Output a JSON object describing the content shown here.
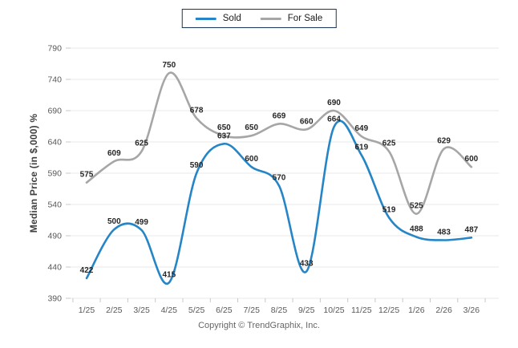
{
  "legend": {
    "items": [
      {
        "label": "Sold",
        "color": "#2585c6"
      },
      {
        "label": "For Sale",
        "color": "#a6a6a6"
      }
    ],
    "border_color": "#17365d"
  },
  "chart_data": {
    "type": "line",
    "title": "",
    "xlabel": "",
    "ylabel": "Median Price (in $,000) %",
    "categories": [
      "1/25",
      "2/25",
      "3/25",
      "4/25",
      "5/25",
      "6/25",
      "7/25",
      "8/25",
      "9/25",
      "10/25",
      "11/25",
      "12/25",
      "1/26",
      "2/26",
      "3/26"
    ],
    "series": [
      {
        "name": "For Sale",
        "color": "#a6a6a6",
        "values": [
          575,
          609,
          625,
          750,
          678,
          650,
          650,
          669,
          660,
          690,
          649,
          625,
          525,
          629,
          600
        ]
      },
      {
        "name": "Sold",
        "color": "#2585c6",
        "values": [
          422,
          500,
          499,
          415,
          590,
          637,
          600,
          570,
          433,
          664,
          619,
          519,
          488,
          483,
          487
        ]
      }
    ],
    "ylim": [
      390,
      790
    ],
    "yticks": [
      390,
      440,
      490,
      540,
      590,
      640,
      690,
      740,
      790
    ],
    "grid": true,
    "legend_position": "top-center",
    "data_labels": true
  },
  "footer": {
    "copyright": "Copyright © TrendGraphix, Inc."
  },
  "colors": {
    "grid": "#e8e8e8",
    "tick": "#c8c8c8",
    "axis_label": "#595959",
    "data_label": "#262626",
    "ylabel_color": "#404040"
  }
}
